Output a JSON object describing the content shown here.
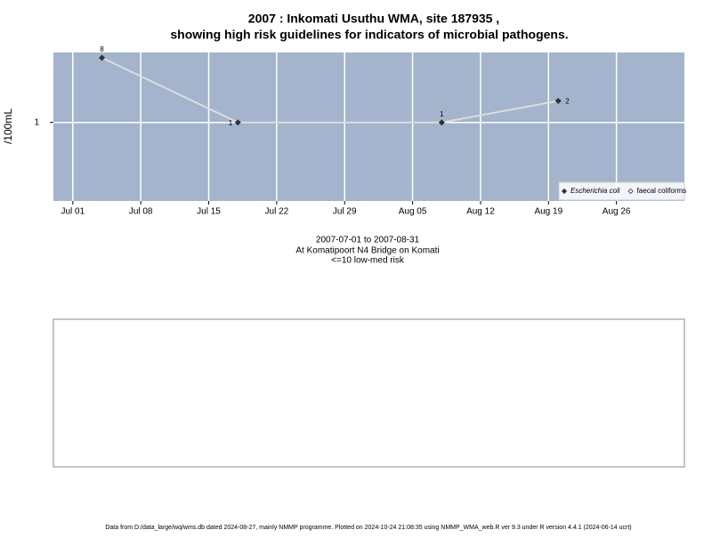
{
  "chart_data": {
    "type": "line",
    "title": "2007 : Inkomati Usuthu WMA, site 187935 ,",
    "subtitle": "showing high risk guidelines for indicators of microbial pathogens.",
    "y_label": "/100mL",
    "x": [
      "2007-07-04",
      "2007-07-18",
      "2007-08-08",
      "2007-08-20"
    ],
    "series": [
      {
        "name": "Escherichia coli",
        "color": "#333333",
        "values": [
          8,
          1,
          1,
          2
        ]
      },
      {
        "name": "faecal coliforms",
        "color": "#333333",
        "values": [
          null,
          null,
          null,
          null
        ]
      }
    ],
    "line_color": "#dddddd",
    "log_y": true,
    "grid": true,
    "legend": "bottom-right",
    "xlim": [
      "2007-06-29",
      "2007-09-02"
    ],
    "xticks": [
      {
        "value": "2007-07-01",
        "label": "Jul 01"
      },
      {
        "value": "2007-07-08",
        "label": "Jul 08"
      },
      {
        "value": "2007-07-15",
        "label": "Jul 15"
      },
      {
        "value": "2007-07-22",
        "label": "Jul 22"
      },
      {
        "value": "2007-07-29",
        "label": "Jul 29"
      },
      {
        "value": "2007-08-05",
        "label": "Aug 05"
      },
      {
        "value": "2007-08-12",
        "label": "Aug 12"
      },
      {
        "value": "2007-08-19",
        "label": "Aug 19"
      },
      {
        "value": "2007-08-26",
        "label": "Aug 26"
      }
    ],
    "ylim": [
      0.08,
      9.5
    ],
    "yticks": [
      1
    ],
    "notes": [
      "2007-07-01 to 2007-08-31",
      "At Komatipoort N4 Bridge on Komati",
      "<=10 low-med risk"
    ],
    "footer": "Data from D:/data_large/wq/wms.db dated 2024-08-27, mainly NMMP programme. Plotted on 2024-10-24 21:08:35 using NMMP_WMA_web.R ver 9.3 under R version 4.4.1 (2024-06-14 ucrt)"
  }
}
